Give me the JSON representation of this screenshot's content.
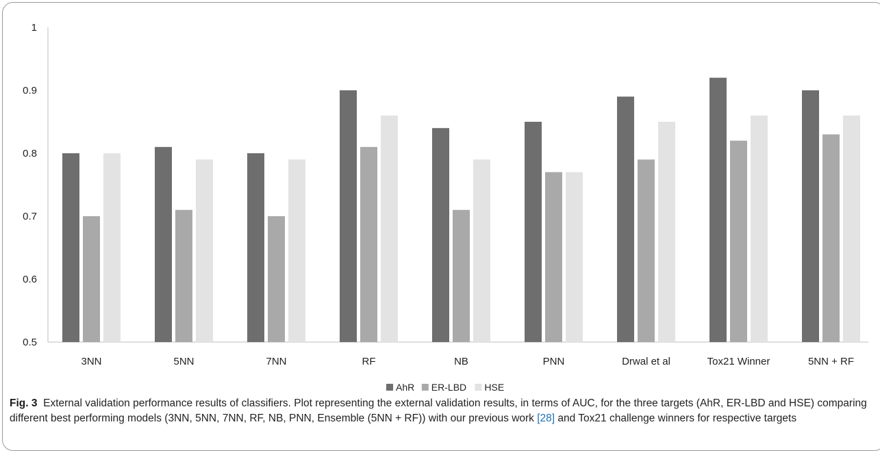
{
  "chart_data": {
    "type": "bar",
    "categories": [
      "3NN",
      "5NN",
      "7NN",
      "RF",
      "NB",
      "PNN",
      "Drwal et al",
      "Tox21 Winner",
      "5NN + RF"
    ],
    "series": [
      {
        "name": "AhR",
        "values": [
          0.8,
          0.81,
          0.8,
          0.9,
          0.84,
          0.85,
          0.89,
          0.92,
          0.9
        ],
        "color": "#6e6e6e"
      },
      {
        "name": "ER-LBD",
        "values": [
          0.7,
          0.71,
          0.7,
          0.81,
          0.71,
          0.77,
          0.79,
          0.82,
          0.83
        ],
        "color": "#a9a9a9"
      },
      {
        "name": "HSE",
        "values": [
          0.8,
          0.79,
          0.79,
          0.86,
          0.79,
          0.77,
          0.85,
          0.86,
          0.86
        ],
        "color": "#e3e3e3"
      }
    ],
    "yticks": [
      "0.5",
      "0.6",
      "0.7",
      "0.8",
      "0.9",
      "1"
    ],
    "ylim": [
      0.5,
      1.0
    ],
    "grid": false,
    "legend_position": "bottom",
    "title": "",
    "xlabel": "",
    "ylabel": ""
  },
  "caption": {
    "fig_label": "Fig. 3",
    "text_before_cite": "External validation performance results of classifiers. Plot representing the external validation results, in terms of AUC, for the three targets (AhR, ER-LBD and HSE) comparing different best performing models (3NN, 5NN, 7NN, RF, NB, PNN, Ensemble (5NN + RF)) with our previous work ",
    "cite": "[28]",
    "text_after_cite": " and Tox21 challenge winners for respective targets"
  }
}
